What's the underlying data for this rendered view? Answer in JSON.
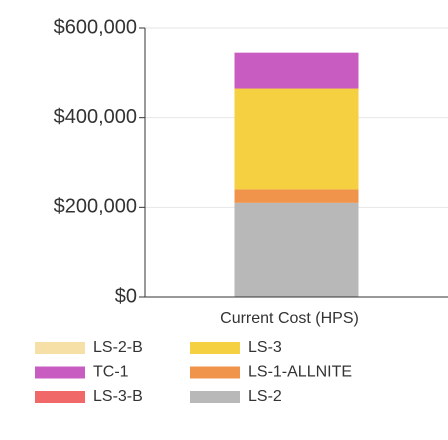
{
  "chart_data": {
    "type": "stacked_bar",
    "categories": [
      "Current Cost (HPS)"
    ],
    "series": [
      {
        "name": "LS-2-B",
        "color": "#f7dfa8",
        "values": [
          0
        ]
      },
      {
        "name": "LS-3",
        "color": "#f5d040",
        "values": [
          225000
        ]
      },
      {
        "name": "TC-1",
        "color": "#c85cc0",
        "values": [
          80000
        ]
      },
      {
        "name": "LS-1-ALLNITE",
        "color": "#f0944c",
        "values": [
          30000
        ]
      },
      {
        "name": "LS-3-B",
        "color": "#f06868",
        "values": [
          0
        ]
      },
      {
        "name": "LS-2",
        "color": "#b8b8b8",
        "values": [
          210000
        ]
      }
    ],
    "ylim": [
      0,
      600000
    ],
    "yticks": [
      {
        "value": 0,
        "label": "$0"
      },
      {
        "value": 200000,
        "label": "$200,000"
      },
      {
        "value": 400000,
        "label": "$400,000"
      },
      {
        "value": 600000,
        "label": "$600,000"
      }
    ],
    "grid": true
  }
}
